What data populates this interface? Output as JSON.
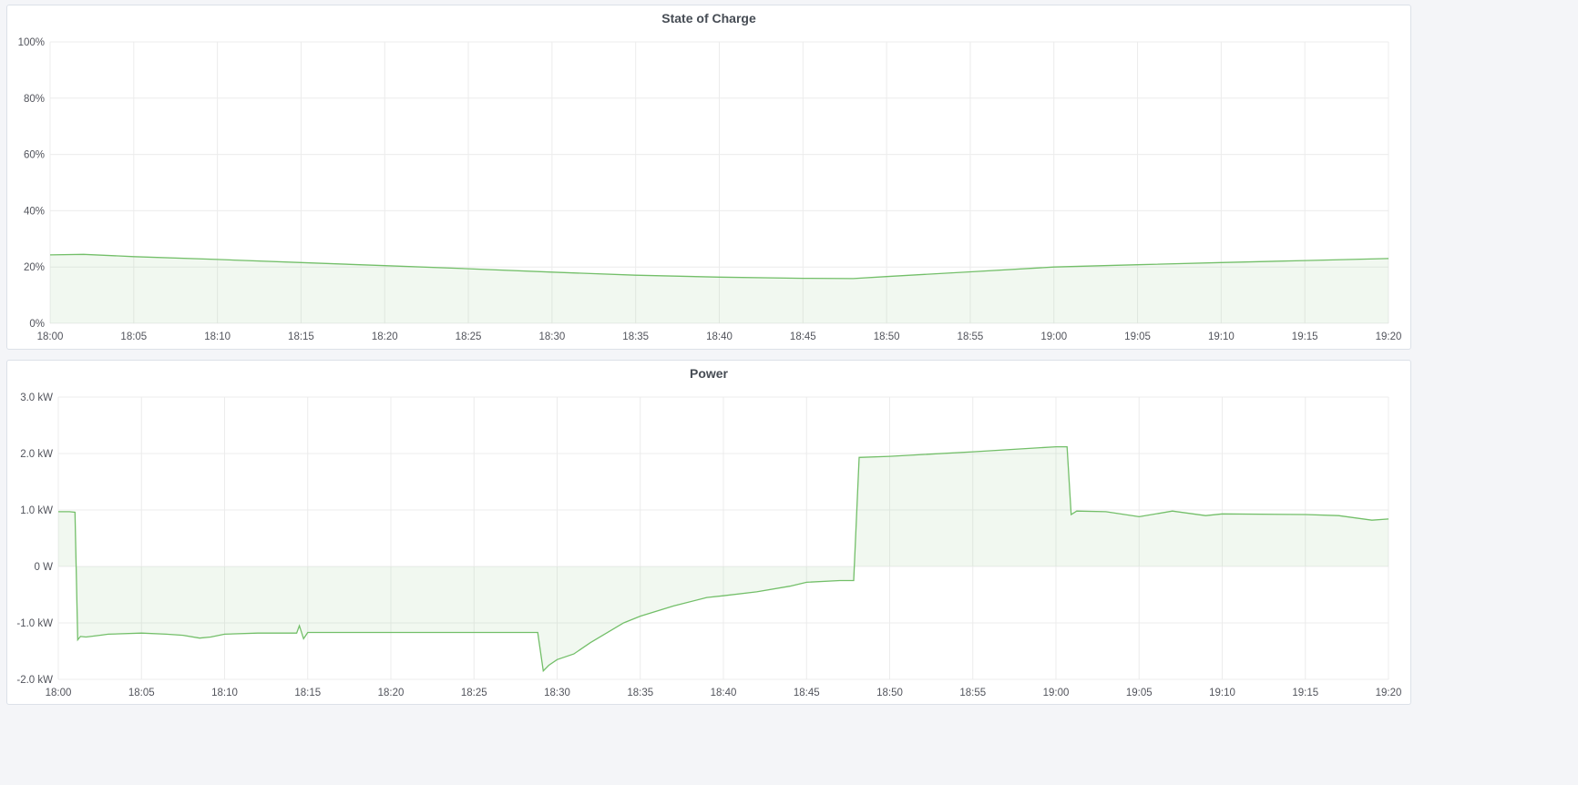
{
  "chart_data": [
    {
      "type": "area",
      "title": "State of Charge",
      "x_ticks": [
        "18:00",
        "18:05",
        "18:10",
        "18:15",
        "18:20",
        "18:25",
        "18:30",
        "18:35",
        "18:40",
        "18:45",
        "18:50",
        "18:55",
        "19:00",
        "19:05",
        "19:10",
        "19:15",
        "19:20"
      ],
      "y_ticks": [
        "0%",
        "20%",
        "40%",
        "60%",
        "80%",
        "100%"
      ],
      "xlim": [
        "18:00",
        "19:20"
      ],
      "ylim": [
        0,
        100
      ],
      "grid": true,
      "color": "#73bf69",
      "x": [
        "18:00:00",
        "18:02:00",
        "18:05:00",
        "18:10:00",
        "18:15:00",
        "18:20:00",
        "18:25:00",
        "18:30:00",
        "18:35:00",
        "18:40:00",
        "18:45:00",
        "18:48:00",
        "18:50:00",
        "18:55:00",
        "19:00:00",
        "19:05:00",
        "19:10:00",
        "19:15:00",
        "19:20:00"
      ],
      "values": [
        24.3,
        24.5,
        23.7,
        22.7,
        21.6,
        20.5,
        19.4,
        18.2,
        17.1,
        16.4,
        16.0,
        15.9,
        16.6,
        18.3,
        20.0,
        20.8,
        21.6,
        22.3,
        23.0
      ]
    },
    {
      "type": "area",
      "title": "Power",
      "x_ticks": [
        "18:00",
        "18:05",
        "18:10",
        "18:15",
        "18:20",
        "18:25",
        "18:30",
        "18:35",
        "18:40",
        "18:45",
        "18:50",
        "18:55",
        "19:00",
        "19:05",
        "19:10",
        "19:15",
        "19:20"
      ],
      "y_ticks": [
        "-2.0 kW",
        "-1.0 kW",
        "0 W",
        "1.0 kW",
        "2.0 kW",
        "3.0 kW"
      ],
      "xlim": [
        "18:00",
        "19:20"
      ],
      "ylim": [
        -2,
        3
      ],
      "unit": "kW",
      "grid": true,
      "color": "#73bf69",
      "x": [
        "18:00:00",
        "18:00:40",
        "18:01:00",
        "18:01:10",
        "18:01:20",
        "18:01:40",
        "18:02:30",
        "18:03:00",
        "18:05:00",
        "18:06:30",
        "18:07:30",
        "18:08:30",
        "18:09:10",
        "18:10:00",
        "18:12:00",
        "18:14:20",
        "18:14:30",
        "18:14:45",
        "18:15:00",
        "18:20:00",
        "18:25:00",
        "18:28:50",
        "18:29:10",
        "18:29:30",
        "18:30:00",
        "18:31:00",
        "18:32:00",
        "18:34:00",
        "18:35:00",
        "18:37:00",
        "18:39:00",
        "18:40:00",
        "18:42:00",
        "18:44:00",
        "18:45:00",
        "18:47:00",
        "18:47:50",
        "18:48:10",
        "18:50:00",
        "18:55:00",
        "19:00:00",
        "19:00:40",
        "19:00:55",
        "19:01:15",
        "19:03:00",
        "19:05:00",
        "19:07:00",
        "19:09:00",
        "19:10:00",
        "19:15:00",
        "19:17:00",
        "19:19:00",
        "19:20:00"
      ],
      "values": [
        0.97,
        0.97,
        0.96,
        -1.3,
        -1.24,
        -1.25,
        -1.22,
        -1.2,
        -1.18,
        -1.2,
        -1.22,
        -1.27,
        -1.25,
        -1.2,
        -1.18,
        -1.18,
        -1.05,
        -1.28,
        -1.17,
        -1.17,
        -1.17,
        -1.17,
        -1.85,
        -1.75,
        -1.65,
        -1.55,
        -1.35,
        -1.0,
        -0.88,
        -0.7,
        -0.55,
        -0.52,
        -0.45,
        -0.35,
        -0.28,
        -0.25,
        -0.25,
        1.93,
        1.95,
        2.03,
        2.12,
        2.12,
        0.92,
        0.98,
        0.97,
        0.88,
        0.98,
        0.9,
        0.93,
        0.92,
        0.9,
        0.82,
        0.84
      ]
    }
  ]
}
